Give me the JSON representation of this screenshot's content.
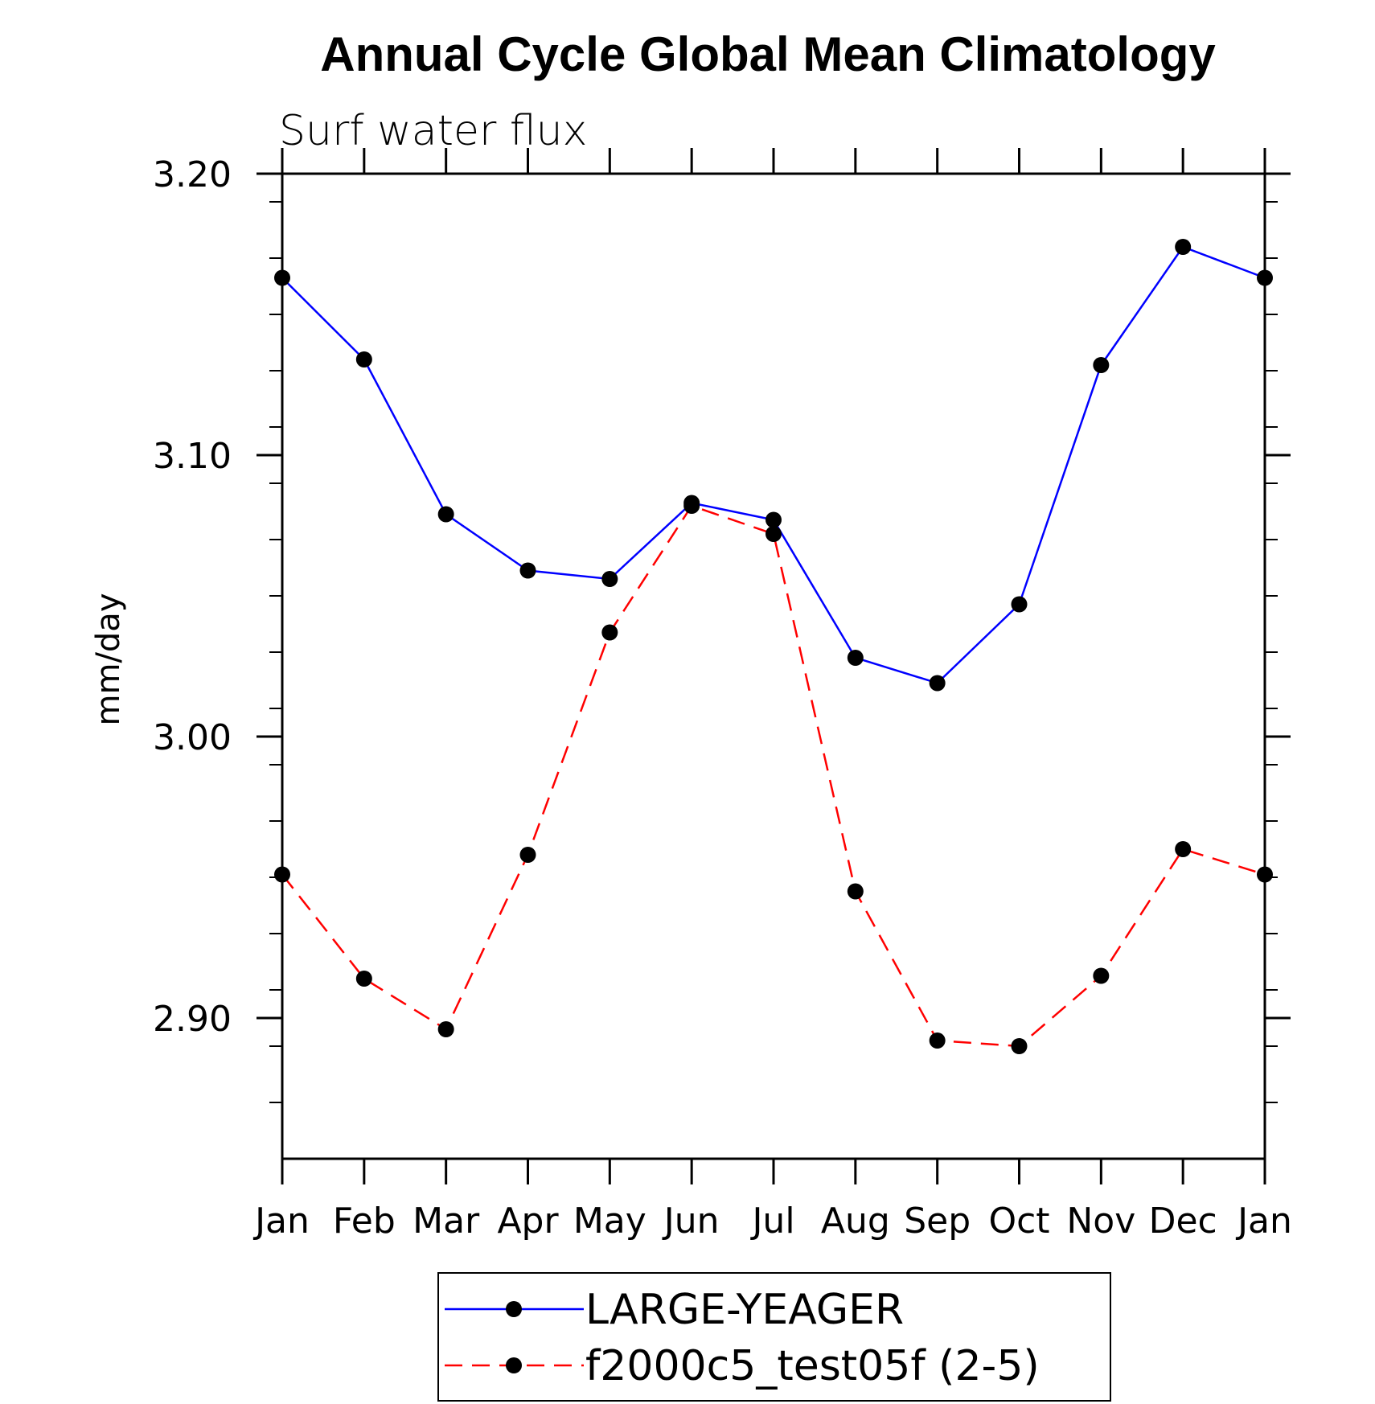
{
  "chart_data": {
    "type": "line",
    "title": "Annual Cycle Global Mean Climatology",
    "subtitle": "Surf water flux",
    "ylabel": "mm/day",
    "xlabel": "",
    "categories": [
      "Jan",
      "Feb",
      "Mar",
      "Apr",
      "May",
      "Jun",
      "Jul",
      "Aug",
      "Sep",
      "Oct",
      "Nov",
      "Dec",
      "Jan"
    ],
    "ylim": [
      2.85,
      3.2
    ],
    "yticks": [
      2.9,
      3.0,
      3.1,
      3.2
    ],
    "ytick_labels": [
      "2.90",
      "3.00",
      "3.10",
      "3.20"
    ],
    "grid": false,
    "legend_position": "bottom",
    "series": [
      {
        "name": "LARGE-YEAGER",
        "color": "#0000ff",
        "line_style": "solid",
        "values": [
          3.163,
          3.134,
          3.079,
          3.059,
          3.056,
          3.083,
          3.077,
          3.028,
          3.019,
          3.047,
          3.132,
          3.174,
          3.163
        ]
      },
      {
        "name": "f2000c5_test05f (2-5)",
        "color": "#ff0000",
        "line_style": "dashed",
        "values": [
          2.951,
          2.914,
          2.896,
          2.958,
          3.037,
          3.082,
          3.072,
          2.945,
          2.892,
          2.89,
          2.915,
          2.96,
          2.951
        ]
      }
    ]
  }
}
